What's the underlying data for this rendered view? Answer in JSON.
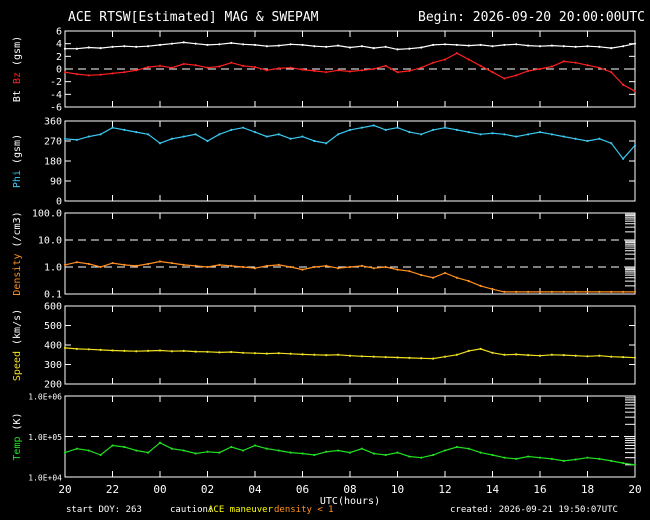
{
  "header": {
    "title": "ACE RTSW[Estimated] MAG & SWEPAM",
    "begin": "Begin: 2026-09-20 20:00:00UTC"
  },
  "footer": {
    "start_doy": "start DOY: 263",
    "caution_label": "caution:",
    "caution_maneuver": "ACE maneuver",
    "caution_density": "density < 1",
    "created": "created: 2026-09-21 19:50:07UTC"
  },
  "colors": {
    "bt": "#ffffff",
    "bz": "#ff2020",
    "phi": "#3cc8f0",
    "density": "#ff9020",
    "speed": "#f0e020",
    "temp": "#20e020",
    "maneuver": "#ffff00",
    "density_caution": "#ff9020"
  },
  "chart_data": {
    "type": "line",
    "xlabel": "UTC(hours)",
    "x_ticks": [
      "20",
      "22",
      "00",
      "02",
      "04",
      "06",
      "08",
      "10",
      "12",
      "14",
      "16",
      "18",
      "20"
    ],
    "x_hours": [
      0,
      2,
      4,
      6,
      8,
      10,
      12,
      14,
      16,
      18,
      20,
      22,
      24
    ],
    "panels": [
      {
        "id": "mag",
        "ylabel_parts": [
          "Bt",
          "Bz",
          "(gsm)"
        ],
        "ylim": [
          -6,
          6
        ],
        "yticks": [
          -6,
          -4,
          -2,
          0,
          2,
          4,
          6
        ],
        "ytick_labels": [
          "-6",
          "-4",
          "-2",
          "0",
          "2",
          "4",
          "6"
        ],
        "dashed_at": [
          0
        ],
        "series": [
          {
            "name": "Bt",
            "color": "#ffffff",
            "x": [
              0,
              0.5,
              1,
              1.5,
              2,
              2.5,
              3,
              3.5,
              4,
              4.5,
              5,
              5.5,
              6,
              6.5,
              7,
              7.5,
              8,
              8.5,
              9,
              9.5,
              10,
              10.5,
              11,
              11.5,
              12,
              12.5,
              13,
              13.5,
              14,
              14.5,
              15,
              15.5,
              16,
              16.5,
              17,
              17.5,
              18,
              18.5,
              19,
              19.5,
              20,
              20.5,
              21,
              21.5,
              22,
              22.5,
              23,
              23.5,
              24
            ],
            "y": [
              3.2,
              3.2,
              3.4,
              3.3,
              3.5,
              3.6,
              3.5,
              3.6,
              3.8,
              4.0,
              4.2,
              4.0,
              3.8,
              3.9,
              4.1,
              3.9,
              3.8,
              3.6,
              3.7,
              3.9,
              3.8,
              3.6,
              3.5,
              3.7,
              3.4,
              3.6,
              3.3,
              3.5,
              3.1,
              3.2,
              3.4,
              3.8,
              3.9,
              3.8,
              3.7,
              3.8,
              3.6,
              3.8,
              3.9,
              3.7,
              3.6,
              3.7,
              3.6,
              3.5,
              3.6,
              3.5,
              3.3,
              3.6,
              4.0
            ]
          },
          {
            "name": "Bz",
            "color": "#ff2020",
            "x": [
              0,
              0.5,
              1,
              1.5,
              2,
              2.5,
              3,
              3.5,
              4,
              4.5,
              5,
              5.5,
              6,
              6.5,
              7,
              7.5,
              8,
              8.5,
              9,
              9.5,
              10,
              10.5,
              11,
              11.5,
              12,
              12.5,
              13,
              13.5,
              14,
              14.5,
              15,
              15.5,
              16,
              16.5,
              17,
              17.5,
              18,
              18.5,
              19,
              19.5,
              20,
              20.5,
              21,
              21.5,
              22,
              22.5,
              23,
              23.5,
              24
            ],
            "y": [
              -0.5,
              -0.8,
              -1.0,
              -0.9,
              -0.7,
              -0.5,
              -0.2,
              0.3,
              0.5,
              0.2,
              0.8,
              0.6,
              0.2,
              0.4,
              1.0,
              0.5,
              0.3,
              -0.2,
              0.1,
              0.2,
              -0.1,
              -0.3,
              -0.5,
              -0.2,
              -0.4,
              -0.2,
              0.0,
              0.5,
              -0.5,
              -0.3,
              0.2,
              1.0,
              1.5,
              2.5,
              1.5,
              0.5,
              -0.5,
              -1.5,
              -1.0,
              -0.3,
              0.0,
              0.4,
              1.2,
              1.0,
              0.6,
              0.2,
              -0.5,
              -2.5,
              -3.5
            ]
          }
        ]
      },
      {
        "id": "phi",
        "ylabel_parts": [
          "Phi",
          "(gsm)"
        ],
        "ylim": [
          0,
          360
        ],
        "yticks": [
          0,
          90,
          180,
          270,
          360
        ],
        "ytick_labels": [
          "0",
          "90",
          "180",
          "270",
          "360"
        ],
        "dashed_at": [],
        "series": [
          {
            "name": "Phi",
            "color": "#3cc8f0",
            "x": [
              0,
              0.5,
              1,
              1.5,
              2,
              2.5,
              3,
              3.5,
              4,
              4.5,
              5,
              5.5,
              6,
              6.5,
              7,
              7.5,
              8,
              8.5,
              9,
              9.5,
              10,
              10.5,
              11,
              11.5,
              12,
              12.5,
              13,
              13.5,
              14,
              14.5,
              15,
              15.5,
              16,
              16.5,
              17,
              17.5,
              18,
              18.5,
              19,
              19.5,
              20,
              20.5,
              21,
              21.5,
              22,
              22.5,
              23,
              23.5,
              24
            ],
            "y": [
              280,
              275,
              290,
              300,
              330,
              320,
              310,
              300,
              260,
              280,
              290,
              300,
              270,
              300,
              320,
              330,
              310,
              290,
              300,
              280,
              290,
              270,
              260,
              300,
              320,
              330,
              340,
              320,
              330,
              310,
              300,
              320,
              330,
              320,
              310,
              300,
              305,
              300,
              290,
              300,
              310,
              300,
              290,
              280,
              270,
              280,
              260,
              190,
              250
            ]
          }
        ]
      },
      {
        "id": "density",
        "ylabel_parts": [
          "Density",
          "(/cm3)"
        ],
        "ylim": [
          0.1,
          100
        ],
        "log": true,
        "yticks": [
          0.1,
          1.0,
          10.0,
          100.0
        ],
        "ytick_labels": [
          "0.1",
          "1.0",
          "10.0",
          "100.0"
        ],
        "dashed_at": [
          1.0,
          10.0
        ],
        "series": [
          {
            "name": "Density",
            "color": "#ff9020",
            "x": [
              0,
              0.5,
              1,
              1.5,
              2,
              2.5,
              3,
              3.5,
              4,
              4.5,
              5,
              5.5,
              6,
              6.5,
              7,
              7.5,
              8,
              8.5,
              9,
              9.5,
              10,
              10.5,
              11,
              11.5,
              12,
              12.5,
              13,
              13.5,
              14,
              14.5,
              15,
              15.5,
              16,
              16.5,
              17,
              17.5,
              18,
              18.5,
              19,
              19.5,
              20,
              20.5,
              21,
              21.5,
              22,
              22.5,
              23,
              23.5,
              24
            ],
            "y": [
              1.2,
              1.5,
              1.3,
              1.0,
              1.4,
              1.2,
              1.1,
              1.3,
              1.6,
              1.4,
              1.2,
              1.1,
              1.0,
              1.2,
              1.1,
              1.0,
              0.9,
              1.1,
              1.2,
              1.0,
              0.8,
              1.0,
              1.1,
              0.9,
              1.0,
              1.1,
              0.9,
              1.0,
              0.8,
              0.7,
              0.5,
              0.4,
              0.6,
              0.4,
              0.3,
              0.2,
              0.15,
              0.12,
              0.12,
              0.12,
              0.12,
              0.12,
              0.12,
              0.12,
              0.12,
              0.12,
              0.12,
              0.12,
              0.12
            ]
          }
        ]
      },
      {
        "id": "speed",
        "ylabel_parts": [
          "Speed",
          "(km/s)"
        ],
        "ylim": [
          200,
          600
        ],
        "yticks": [
          200,
          300,
          400,
          500,
          600
        ],
        "ytick_labels": [
          "200",
          "300",
          "400",
          "500",
          "600"
        ],
        "dashed_at": [],
        "series": [
          {
            "name": "Speed",
            "color": "#f0e020",
            "x": [
              0,
              0.5,
              1,
              1.5,
              2,
              2.5,
              3,
              3.5,
              4,
              4.5,
              5,
              5.5,
              6,
              6.5,
              7,
              7.5,
              8,
              8.5,
              9,
              9.5,
              10,
              10.5,
              11,
              11.5,
              12,
              12.5,
              13,
              13.5,
              14,
              14.5,
              15,
              15.5,
              16,
              16.5,
              17,
              17.5,
              18,
              18.5,
              19,
              19.5,
              20,
              20.5,
              21,
              21.5,
              22,
              22.5,
              23,
              23.5,
              24
            ],
            "y": [
              385,
              380,
              378,
              375,
              372,
              370,
              368,
              370,
              372,
              368,
              370,
              366,
              365,
              362,
              364,
              360,
              358,
              356,
              358,
              355,
              352,
              350,
              348,
              350,
              345,
              342,
              340,
              338,
              336,
              334,
              332,
              330,
              340,
              350,
              370,
              380,
              360,
              350,
              352,
              348,
              345,
              350,
              348,
              345,
              342,
              345,
              340,
              338,
              335
            ]
          }
        ]
      },
      {
        "id": "temp",
        "ylabel_parts": [
          "Temp",
          "(K)"
        ],
        "ylim": [
          10000,
          1000000
        ],
        "log": true,
        "yticks": [
          10000,
          100000,
          1000000
        ],
        "ytick_labels": [
          "1.0E+04",
          "1.0E+05",
          "1.0E+06"
        ],
        "dashed_at": [
          100000
        ],
        "series": [
          {
            "name": "Temp",
            "color": "#20e020",
            "x": [
              0,
              0.5,
              1,
              1.5,
              2,
              2.5,
              3,
              3.5,
              4,
              4.5,
              5,
              5.5,
              6,
              6.5,
              7,
              7.5,
              8,
              8.5,
              9,
              9.5,
              10,
              10.5,
              11,
              11.5,
              12,
              12.5,
              13,
              13.5,
              14,
              14.5,
              15,
              15.5,
              16,
              16.5,
              17,
              17.5,
              18,
              18.5,
              19,
              19.5,
              20,
              20.5,
              21,
              21.5,
              22,
              22.5,
              23,
              23.5,
              24
            ],
            "y": [
              40000,
              50000,
              45000,
              35000,
              60000,
              55000,
              45000,
              40000,
              70000,
              50000,
              45000,
              38000,
              42000,
              40000,
              55000,
              45000,
              60000,
              50000,
              45000,
              40000,
              38000,
              35000,
              42000,
              45000,
              40000,
              50000,
              38000,
              35000,
              40000,
              32000,
              30000,
              35000,
              45000,
              55000,
              50000,
              40000,
              35000,
              30000,
              28000,
              32000,
              30000,
              28000,
              25000,
              27000,
              30000,
              28000,
              25000,
              22000,
              20000
            ]
          }
        ]
      }
    ]
  }
}
